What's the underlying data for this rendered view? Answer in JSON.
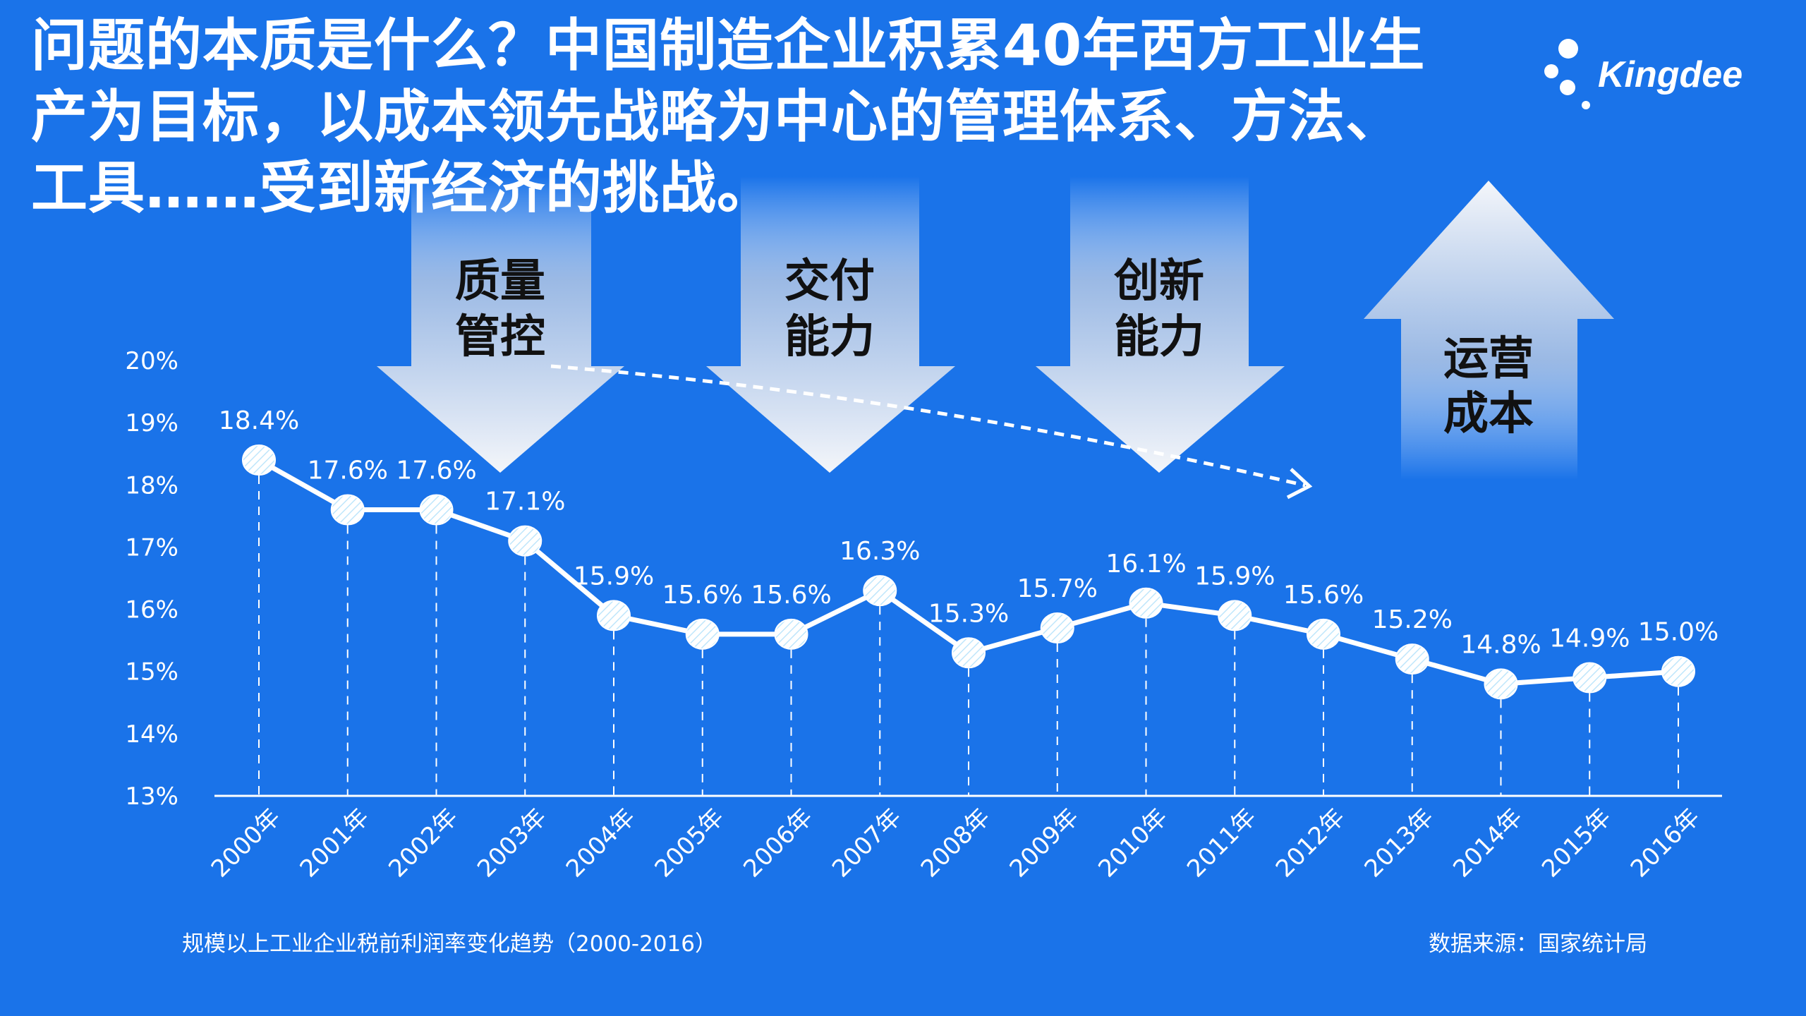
{
  "title_lines": [
    "问题的本质是什么？中国制造企业积累40年西方工业生",
    "产为目标，以成本领先战略为中心的管理体系、方法、",
    "工具……受到新经济的挑战。"
  ],
  "logo": {
    "text": "Kingdee"
  },
  "arrows": [
    {
      "direction": "down",
      "lines": [
        "质量",
        "管控"
      ]
    },
    {
      "direction": "down",
      "lines": [
        "交付",
        "能力"
      ]
    },
    {
      "direction": "down",
      "lines": [
        "创新",
        "能力"
      ]
    },
    {
      "direction": "up",
      "lines": [
        "运营",
        "成本"
      ]
    }
  ],
  "colors": {
    "background": "#1a73e9",
    "line": "#ffffff",
    "arrow_text": "#111111"
  },
  "chart_data": {
    "type": "line",
    "categories": [
      "2000年",
      "2001年",
      "2002年",
      "2003年",
      "2004年",
      "2005年",
      "2006年",
      "2007年",
      "2008年",
      "2009年",
      "2010年",
      "2011年",
      "2012年",
      "2013年",
      "2014年",
      "2015年",
      "2016年"
    ],
    "values": [
      18.4,
      17.6,
      17.6,
      17.1,
      15.9,
      15.6,
      15.6,
      16.3,
      15.3,
      15.7,
      16.1,
      15.9,
      15.6,
      15.2,
      14.8,
      14.9,
      15.0
    ],
    "data_labels": [
      "18.4%",
      "17.6%",
      "17.6%",
      "17.1%",
      "15.9%",
      "15.6%",
      "15.6%",
      "16.3%",
      "15.3%",
      "15.7%",
      "16.1%",
      "15.9%",
      "15.6%",
      "15.2%",
      "14.8%",
      "14.9%",
      "15.0%"
    ],
    "ylim": [
      13,
      20
    ],
    "yticks": [
      "13%",
      "14%",
      "15%",
      "16%",
      "17%",
      "18%",
      "19%",
      "20%"
    ],
    "grid": false,
    "title": "规模以上工业企业税前利润率变化趋势（2000-2016）",
    "source": "数据来源：国家统计局"
  }
}
